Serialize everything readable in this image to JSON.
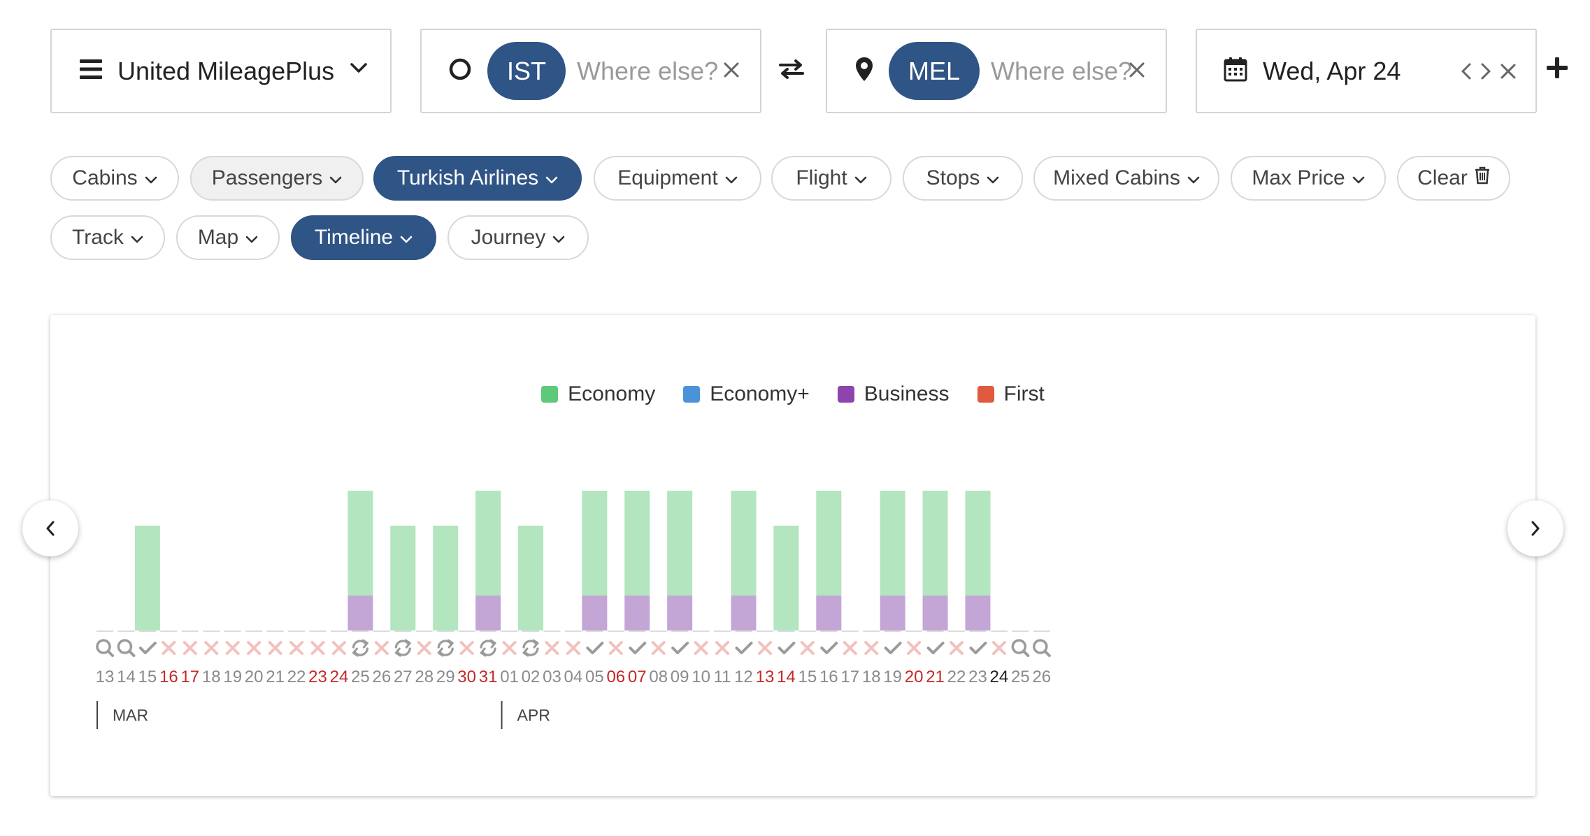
{
  "search": {
    "program": "United MileagePlus",
    "origin_code": "IST",
    "origin_placeholder": "Where else?",
    "destination_code": "MEL",
    "destination_placeholder": "Where else?",
    "date": "Wed, Apr 24"
  },
  "filters": [
    {
      "label": "Cabins",
      "state": "default"
    },
    {
      "label": "Passengers",
      "state": "grey"
    },
    {
      "label": "Turkish Airlines",
      "state": "active"
    },
    {
      "label": "Equipment",
      "state": "default"
    },
    {
      "label": "Flight",
      "state": "default"
    },
    {
      "label": "Stops",
      "state": "default"
    },
    {
      "label": "Mixed Cabins",
      "state": "default"
    },
    {
      "label": "Max Price",
      "state": "default"
    },
    {
      "label": "Clear",
      "state": "default"
    },
    {
      "label": "Track",
      "state": "default"
    },
    {
      "label": "Map",
      "state": "default"
    },
    {
      "label": "Timeline",
      "state": "active"
    },
    {
      "label": "Journey",
      "state": "default"
    }
  ],
  "colors": {
    "brand": "#2f5486",
    "economy": "#5ec87b",
    "economy_plus": "#4b93d8",
    "business": "#8e44ad",
    "first": "#e05a3e",
    "economy_bar": "#b3e5bf",
    "business_bar": "#c3a5d6",
    "weekend_red": "#c62828",
    "cross_pink": "#f2c1bf"
  },
  "chart_data": {
    "type": "bar",
    "legend": [
      {
        "name": "Economy",
        "color": "#5ec87b"
      },
      {
        "name": "Economy+",
        "color": "#4b93d8"
      },
      {
        "name": "Business",
        "color": "#8e44ad"
      },
      {
        "name": "First",
        "color": "#e05a3e"
      }
    ],
    "months": [
      {
        "label": "MAR",
        "start_index": 0
      },
      {
        "label": "APR",
        "start_index": 19
      }
    ],
    "selected_day": "24",
    "days": [
      {
        "day": "13",
        "status": "search",
        "weekend": false,
        "economy": 0,
        "business": 0
      },
      {
        "day": "14",
        "status": "search",
        "weekend": false,
        "economy": 0,
        "business": 0
      },
      {
        "day": "15",
        "status": "check",
        "weekend": false,
        "economy": 1,
        "business": 0
      },
      {
        "day": "16",
        "status": "none",
        "weekend": true,
        "economy": 0,
        "business": 0
      },
      {
        "day": "17",
        "status": "none",
        "weekend": true,
        "economy": 0,
        "business": 0
      },
      {
        "day": "18",
        "status": "none",
        "weekend": false,
        "economy": 0,
        "business": 0
      },
      {
        "day": "19",
        "status": "none",
        "weekend": false,
        "economy": 0,
        "business": 0
      },
      {
        "day": "20",
        "status": "none",
        "weekend": false,
        "economy": 0,
        "business": 0
      },
      {
        "day": "21",
        "status": "none",
        "weekend": false,
        "economy": 0,
        "business": 0
      },
      {
        "day": "22",
        "status": "none",
        "weekend": false,
        "economy": 0,
        "business": 0
      },
      {
        "day": "23",
        "status": "none",
        "weekend": true,
        "economy": 0,
        "business": 0
      },
      {
        "day": "24",
        "status": "none",
        "weekend": true,
        "economy": 0,
        "business": 0
      },
      {
        "day": "25",
        "status": "refresh",
        "weekend": false,
        "economy": 1,
        "business": 1
      },
      {
        "day": "26",
        "status": "none",
        "weekend": false,
        "economy": 0,
        "business": 0
      },
      {
        "day": "27",
        "status": "refresh",
        "weekend": false,
        "economy": 1,
        "business": 0
      },
      {
        "day": "28",
        "status": "none",
        "weekend": false,
        "economy": 0,
        "business": 0
      },
      {
        "day": "29",
        "status": "refresh",
        "weekend": false,
        "economy": 1,
        "business": 0
      },
      {
        "day": "30",
        "status": "none",
        "weekend": true,
        "economy": 0,
        "business": 0
      },
      {
        "day": "31",
        "status": "refresh",
        "weekend": true,
        "economy": 1,
        "business": 1
      },
      {
        "day": "01",
        "status": "none",
        "weekend": false,
        "economy": 0,
        "business": 0
      },
      {
        "day": "02",
        "status": "refresh",
        "weekend": false,
        "economy": 1,
        "business": 0
      },
      {
        "day": "03",
        "status": "none",
        "weekend": false,
        "economy": 0,
        "business": 0
      },
      {
        "day": "04",
        "status": "none",
        "weekend": false,
        "economy": 0,
        "business": 0
      },
      {
        "day": "05",
        "status": "check",
        "weekend": false,
        "economy": 1,
        "business": 1
      },
      {
        "day": "06",
        "status": "none",
        "weekend": true,
        "economy": 0,
        "business": 0
      },
      {
        "day": "07",
        "status": "check",
        "weekend": true,
        "economy": 1,
        "business": 1
      },
      {
        "day": "08",
        "status": "none",
        "weekend": false,
        "economy": 0,
        "business": 0
      },
      {
        "day": "09",
        "status": "check",
        "weekend": false,
        "economy": 1,
        "business": 1
      },
      {
        "day": "10",
        "status": "none",
        "weekend": false,
        "economy": 0,
        "business": 0
      },
      {
        "day": "11",
        "status": "none",
        "weekend": false,
        "economy": 0,
        "business": 0
      },
      {
        "day": "12",
        "status": "check",
        "weekend": false,
        "economy": 1,
        "business": 1
      },
      {
        "day": "13",
        "status": "none",
        "weekend": true,
        "economy": 0,
        "business": 0
      },
      {
        "day": "14",
        "status": "check",
        "weekend": true,
        "economy": 1,
        "business": 0
      },
      {
        "day": "15",
        "status": "none",
        "weekend": false,
        "economy": 0,
        "business": 0
      },
      {
        "day": "16",
        "status": "check",
        "weekend": false,
        "economy": 1,
        "business": 1
      },
      {
        "day": "17",
        "status": "none",
        "weekend": false,
        "economy": 0,
        "business": 0
      },
      {
        "day": "18",
        "status": "none",
        "weekend": false,
        "economy": 0,
        "business": 0
      },
      {
        "day": "19",
        "status": "check",
        "weekend": false,
        "economy": 1,
        "business": 1
      },
      {
        "day": "20",
        "status": "none",
        "weekend": true,
        "economy": 0,
        "business": 0
      },
      {
        "day": "21",
        "status": "check",
        "weekend": true,
        "economy": 1,
        "business": 1
      },
      {
        "day": "22",
        "status": "none",
        "weekend": false,
        "economy": 0,
        "business": 0
      },
      {
        "day": "23",
        "status": "check",
        "weekend": false,
        "economy": 1,
        "business": 1
      },
      {
        "day": "24",
        "status": "none",
        "weekend": false,
        "economy": 0,
        "business": 0
      },
      {
        "day": "25",
        "status": "search",
        "weekend": false,
        "economy": 0,
        "business": 0
      },
      {
        "day": "26",
        "status": "search",
        "weekend": false,
        "economy": 0,
        "business": 0
      }
    ]
  }
}
